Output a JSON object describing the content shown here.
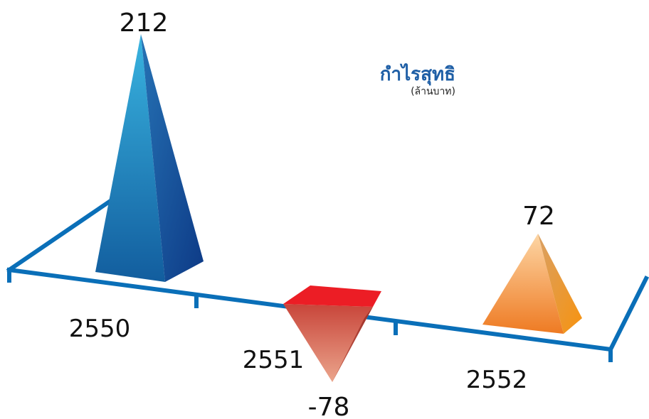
{
  "chart_data": {
    "type": "bar",
    "title": "กำไรสุทธิ",
    "subtitle": "(ล้านบาท)",
    "categories": [
      "2550",
      "2551",
      "2552"
    ],
    "values": [
      212,
      -78,
      72
    ],
    "value_labels": [
      "212",
      "-78",
      "72"
    ],
    "grid": false,
    "legend": "none"
  },
  "colors": {
    "axis": "#0a6fb8",
    "series_2550": "#1e6fae",
    "series_2551": "#e8322c",
    "series_2552": "#f08a2a"
  }
}
